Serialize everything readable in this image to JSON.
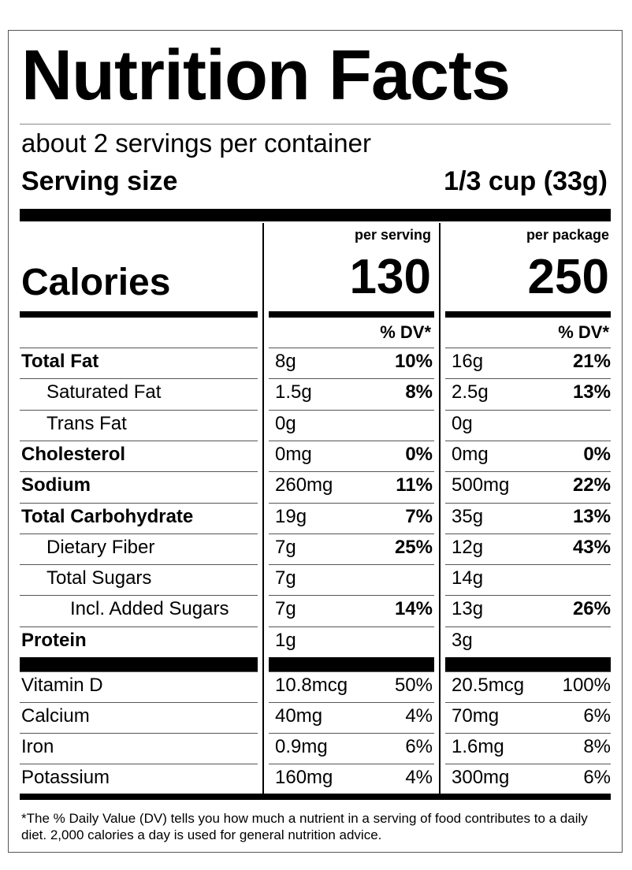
{
  "title": "Nutrition Facts",
  "servings_per_container": "about 2 servings per container",
  "serving_size_label": "Serving size",
  "serving_size_value": "1/3 cup (33g)",
  "columns": {
    "per_serving": "per serving",
    "per_package": "per package"
  },
  "calories": {
    "label": "Calories",
    "per_serving": "130",
    "per_package": "250"
  },
  "dv_header": "% DV*",
  "nutrients": [
    {
      "name": "Total Fat",
      "bold": true,
      "indent": 0,
      "serv_amt": "8g",
      "serv_dv": "10%",
      "pkg_amt": "16g",
      "pkg_dv": "21%"
    },
    {
      "name": "Saturated Fat",
      "bold": false,
      "indent": 1,
      "serv_amt": "1.5g",
      "serv_dv": "8%",
      "pkg_amt": "2.5g",
      "pkg_dv": "13%"
    },
    {
      "name": "Trans Fat",
      "bold": false,
      "indent": 1,
      "serv_amt": "0g",
      "serv_dv": "",
      "pkg_amt": "0g",
      "pkg_dv": ""
    },
    {
      "name": "Cholesterol",
      "bold": true,
      "indent": 0,
      "serv_amt": "0mg",
      "serv_dv": "0%",
      "pkg_amt": "0mg",
      "pkg_dv": "0%"
    },
    {
      "name": "Sodium",
      "bold": true,
      "indent": 0,
      "serv_amt": "260mg",
      "serv_dv": "11%",
      "pkg_amt": "500mg",
      "pkg_dv": "22%"
    },
    {
      "name": "Total Carbohydrate",
      "bold": true,
      "indent": 0,
      "serv_amt": "19g",
      "serv_dv": "7%",
      "pkg_amt": "35g",
      "pkg_dv": "13%"
    },
    {
      "name": "Dietary Fiber",
      "bold": false,
      "indent": 1,
      "serv_amt": "7g",
      "serv_dv": "25%",
      "pkg_amt": "12g",
      "pkg_dv": "43%"
    },
    {
      "name": "Total Sugars",
      "bold": false,
      "indent": 1,
      "serv_amt": "7g",
      "serv_dv": "",
      "pkg_amt": "14g",
      "pkg_dv": ""
    },
    {
      "name": "Incl. Added Sugars",
      "bold": false,
      "indent": 2,
      "serv_amt": "7g",
      "serv_dv": "14%",
      "pkg_amt": "13g",
      "pkg_dv": "26%"
    },
    {
      "name": "Protein",
      "bold": true,
      "indent": 0,
      "serv_amt": "1g",
      "serv_dv": "",
      "pkg_amt": "3g",
      "pkg_dv": ""
    }
  ],
  "vitamins": [
    {
      "name": "Vitamin D",
      "serv_amt": "10.8mcg",
      "serv_dv": "50%",
      "pkg_amt": "20.5mcg",
      "pkg_dv": "100%"
    },
    {
      "name": "Calcium",
      "serv_amt": "40mg",
      "serv_dv": "4%",
      "pkg_amt": "70mg",
      "pkg_dv": "6%"
    },
    {
      "name": "Iron",
      "serv_amt": "0.9mg",
      "serv_dv": "6%",
      "pkg_amt": "1.6mg",
      "pkg_dv": "8%"
    },
    {
      "name": "Potassium",
      "serv_amt": "160mg",
      "serv_dv": "4%",
      "pkg_amt": "300mg",
      "pkg_dv": "6%"
    }
  ],
  "footnote": "*The % Daily Value (DV) tells you how much a nutrient in a serving of food contributes to a daily diet. 2,000 calories a day is used for general nutrition advice."
}
